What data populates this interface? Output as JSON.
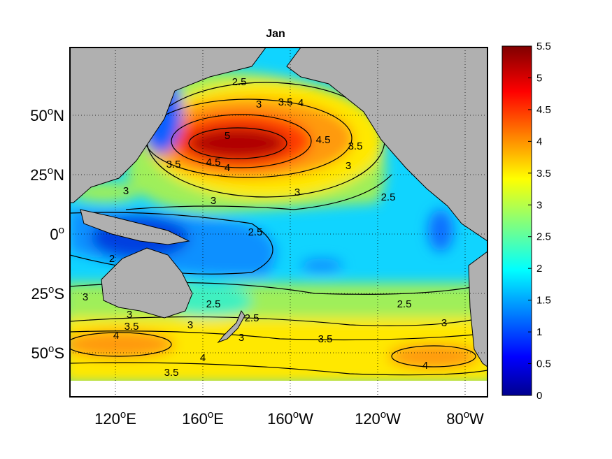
{
  "title": "Jan",
  "y_ticks": [
    {
      "main": "50",
      "sup": "o",
      "suffix": "N"
    },
    {
      "main": "25",
      "sup": "o",
      "suffix": "N"
    },
    {
      "main": "0",
      "sup": "o",
      "suffix": ""
    },
    {
      "main": "25",
      "sup": "o",
      "suffix": "S"
    },
    {
      "main": "50",
      "sup": "o",
      "suffix": "S"
    }
  ],
  "x_ticks": [
    {
      "main": "120",
      "sup": "o",
      "suffix": "E"
    },
    {
      "main": "160",
      "sup": "o",
      "suffix": "E"
    },
    {
      "main": "160",
      "sup": "o",
      "suffix": "W"
    },
    {
      "main": "120",
      "sup": "o",
      "suffix": "W"
    },
    {
      "main": "80",
      "sup": "o",
      "suffix": "W"
    }
  ],
  "colorbar": {
    "min": 0,
    "max": 5.5,
    "ticks": [
      "0",
      "0.5",
      "1",
      "1.5",
      "2",
      "2.5",
      "3",
      "3.5",
      "4",
      "4.5",
      "5",
      "5.5"
    ],
    "colormap": "jet"
  },
  "contour_labels": [
    "2.5",
    "3",
    "3.5",
    "4",
    "5",
    "4.5",
    "3.5",
    "3.5",
    "4.5",
    "4",
    "3",
    "3",
    "2.5",
    "3",
    "3",
    "2.5",
    "2",
    "3",
    "3",
    "3.5",
    "4",
    "3",
    "2.5",
    "2.5",
    "3",
    "4",
    "3.5",
    "2.5",
    "3",
    "4",
    "3.5"
  ],
  "colors": {
    "land": "#b0b0b0",
    "frame": "#000000"
  }
}
